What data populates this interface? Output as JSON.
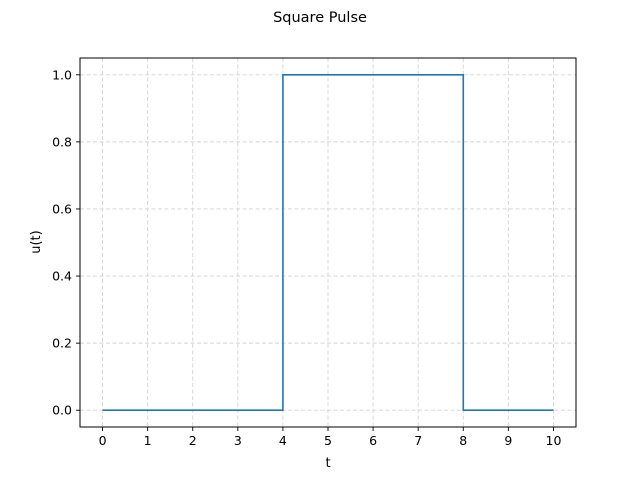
{
  "chart_data": {
    "type": "line",
    "title": "Square Pulse",
    "xlabel": "t",
    "ylabel": "u(t)",
    "xlim": [
      -0.5,
      10.5
    ],
    "ylim": [
      -0.05,
      1.05
    ],
    "xticks": [
      0,
      1,
      2,
      3,
      4,
      5,
      6,
      7,
      8,
      9,
      10
    ],
    "xtick_labels": [
      "0",
      "1",
      "2",
      "3",
      "4",
      "5",
      "6",
      "7",
      "8",
      "9",
      "10"
    ],
    "yticks": [
      0.0,
      0.2,
      0.4,
      0.6,
      0.8,
      1.0
    ],
    "ytick_labels": [
      "0.0",
      "0.2",
      "0.4",
      "0.6",
      "0.8",
      "1.0"
    ],
    "grid": true,
    "grid_style": "dashed",
    "step_style": "post",
    "series": [
      {
        "color": "#1f77b4",
        "x": [
          0,
          4,
          8,
          10
        ],
        "y": [
          0,
          1,
          0,
          0
        ]
      }
    ]
  }
}
